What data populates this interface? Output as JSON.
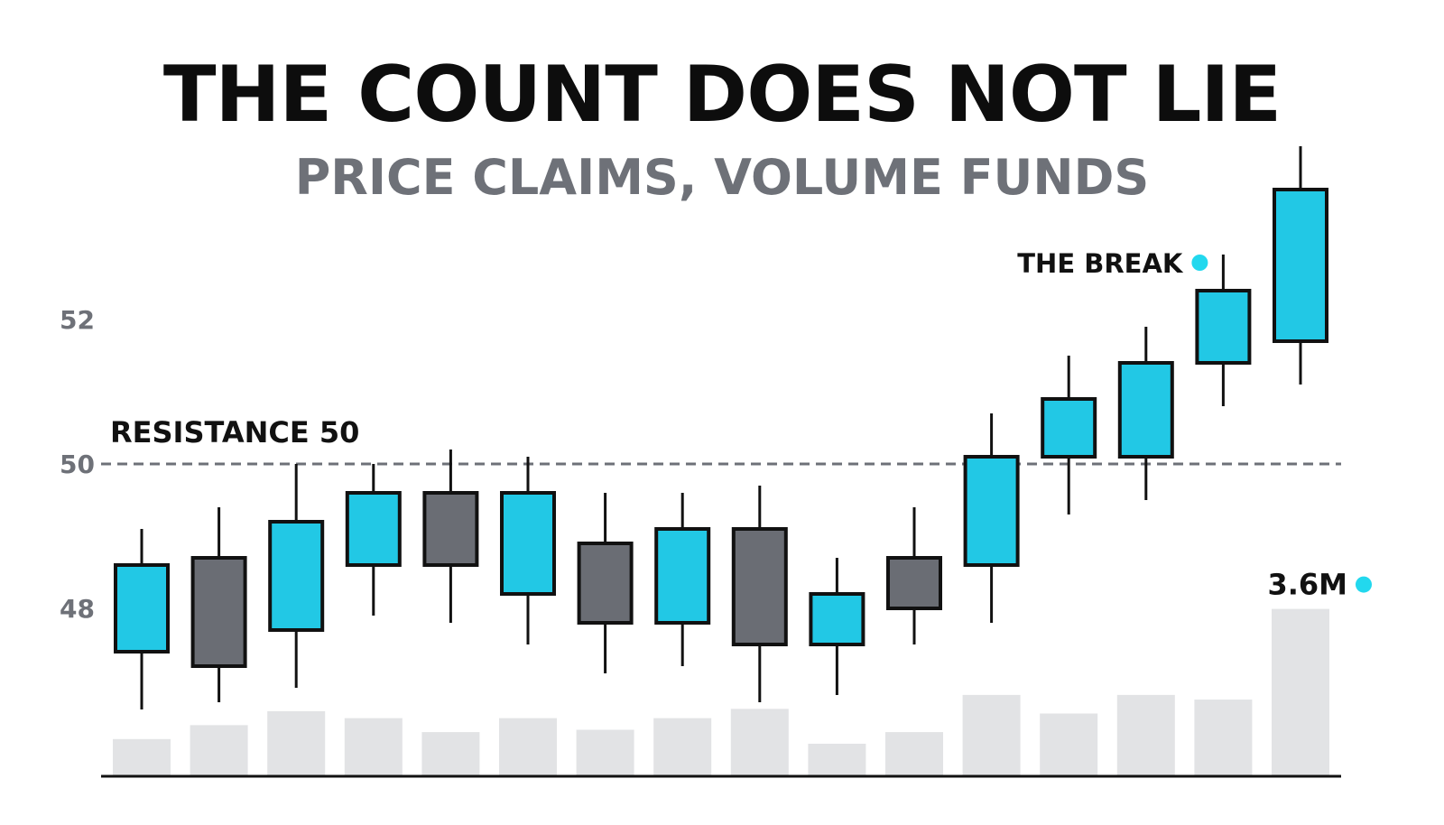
{
  "colors": {
    "up": "#22c8e5",
    "down": "#6a6d74",
    "outline": "#111111",
    "volume": "#e2e3e5",
    "reference_line": "#6e7178",
    "tick_text": "#6e7178",
    "title": "#0d0d0d",
    "subtitle": "#6e7178",
    "marker": "#22d8ee"
  },
  "chart_data": {
    "type": "candlestick",
    "title": "THE COUNT DOES NOT LIE",
    "subtitle": "PRICE CLAIMS, VOLUME FUNDS",
    "ylim": [
      46,
      54.4
    ],
    "yticks": [
      {
        "value": 48,
        "label": "48"
      },
      {
        "value": 50,
        "label": "50"
      },
      {
        "value": 52,
        "label": "52"
      }
    ],
    "grid": false,
    "candles": [
      {
        "open": 47.4,
        "high": 49.1,
        "low": 46.6,
        "close": 48.6
      },
      {
        "open": 48.7,
        "high": 49.4,
        "low": 46.7,
        "close": 47.2
      },
      {
        "open": 47.7,
        "high": 50.0,
        "low": 46.9,
        "close": 49.2
      },
      {
        "open": 48.6,
        "high": 50.0,
        "low": 47.9,
        "close": 49.6
      },
      {
        "open": 49.6,
        "high": 50.2,
        "low": 47.8,
        "close": 48.6
      },
      {
        "open": 48.2,
        "high": 50.1,
        "low": 47.5,
        "close": 49.6
      },
      {
        "open": 48.9,
        "high": 49.6,
        "low": 47.1,
        "close": 47.8
      },
      {
        "open": 47.8,
        "high": 49.6,
        "low": 47.2,
        "close": 49.1
      },
      {
        "open": 49.1,
        "high": 49.7,
        "low": 46.7,
        "close": 47.5
      },
      {
        "open": 47.5,
        "high": 48.7,
        "low": 46.8,
        "close": 48.2
      },
      {
        "open": 48.7,
        "high": 49.4,
        "low": 47.5,
        "close": 48.0
      },
      {
        "open": 48.6,
        "high": 50.7,
        "low": 47.8,
        "close": 50.1
      },
      {
        "open": 50.1,
        "high": 51.5,
        "low": 49.3,
        "close": 50.9
      },
      {
        "open": 50.1,
        "high": 51.9,
        "low": 49.5,
        "close": 51.4
      },
      {
        "open": 51.4,
        "high": 52.9,
        "low": 50.8,
        "close": 52.4
      },
      {
        "open": 51.7,
        "high": 54.4,
        "low": 51.1,
        "close": 53.8
      }
    ],
    "volume_unit": "M",
    "volume": [
      0.8,
      1.1,
      1.4,
      1.25,
      0.95,
      1.25,
      1.0,
      1.25,
      1.45,
      0.7,
      0.95,
      1.75,
      1.35,
      1.75,
      1.65,
      3.6
    ],
    "reference_line": {
      "value": 50,
      "label": "RESISTANCE 50",
      "style": "dashed"
    },
    "annotations": [
      {
        "text": "THE BREAK",
        "candle_index": 14
      },
      {
        "text": "3.6M",
        "candle_index": 15
      }
    ]
  }
}
